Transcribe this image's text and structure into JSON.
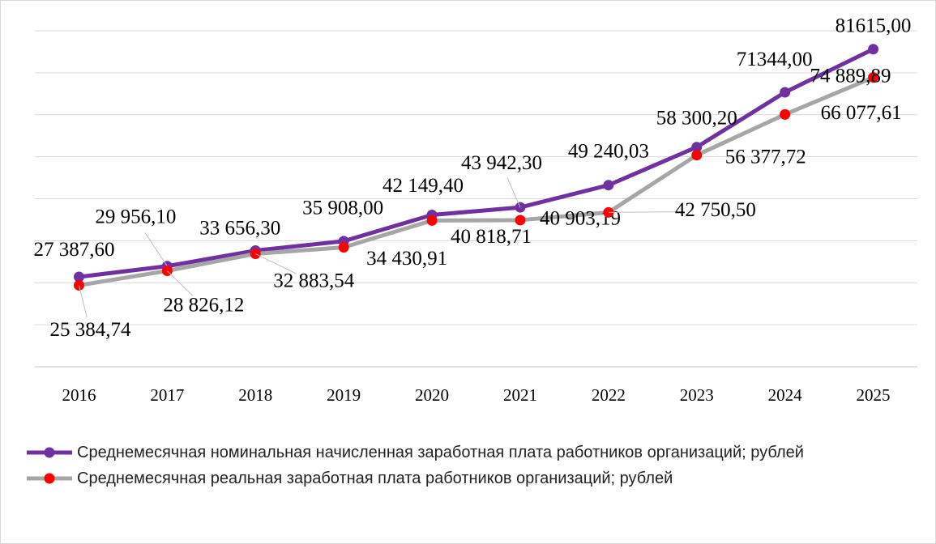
{
  "chart_data": {
    "type": "line",
    "categories": [
      "2016",
      "2017",
      "2018",
      "2019",
      "2020",
      "2021",
      "2022",
      "2023",
      "2024",
      "2025"
    ],
    "series": [
      {
        "name": "Среднемесячная номинальная начисленная заработная плата работников организаций; рублей",
        "color": "#7030a0",
        "marker_color": "#7030a0",
        "values": [
          27387.6,
          29956.1,
          33656.3,
          35908.0,
          42149.4,
          43942.3,
          49240.03,
          58300.2,
          71344.0,
          81615.0
        ],
        "value_labels": [
          "27 387,60",
          "29 956,10",
          "33 656,30",
          "35 908,00",
          "42 149,40",
          "43 942,30",
          "49 240,03",
          "58 300,20",
          "71344,00",
          "81615,00"
        ]
      },
      {
        "name": "Среднемесячная реальная заработная плата работников организаций; рублей",
        "color": "#a6a6a6",
        "marker_color": "#ff0000",
        "values": [
          25384.74,
          28826.12,
          32883.54,
          34430.91,
          40818.71,
          40903.19,
          42750.5,
          56377.72,
          66077.61,
          74889.89
        ],
        "value_labels": [
          "25 384,74",
          "28 826,12",
          "32 883,54",
          "34 430,91",
          "40 818,71",
          "40 903,19",
          "42 750,50",
          "56 377,72",
          "66 077,61",
          "74 889,89"
        ]
      }
    ],
    "ylim": [
      6000,
      86000
    ],
    "yticks": [
      6000,
      16000,
      26000,
      36000,
      46000,
      56000,
      66000,
      76000,
      86000
    ],
    "grid": true,
    "legend": "bottom"
  }
}
